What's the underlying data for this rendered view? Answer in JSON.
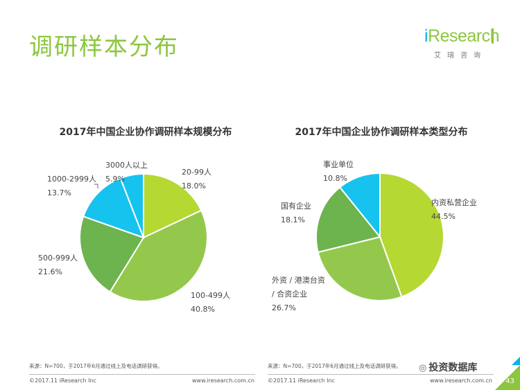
{
  "slide": {
    "title": "调研样本分布",
    "brand_logo_i": "i",
    "brand_logo_rest": "Research",
    "brand_sub": "艾瑞咨询",
    "page_number": "43",
    "watermark": "投资数据库"
  },
  "footer": {
    "source_left": "来源：N=700，于2017年6月通过线上及电话调研获得。",
    "source_right": "来源：N=700，于2017年6月通过线上及电话调研获得。",
    "copyright_left": "©2017.11 iResearch Inc",
    "copyright_right": "©2017.11 iResearch Inc",
    "website_left": "www.iresearch.com.cn",
    "website_right": "www.iresearch.com.cn"
  },
  "colors": {
    "light_green": "#b5d833",
    "mid_green": "#94c84d",
    "dark_green": "#6db34e",
    "cyan": "#16c3ee",
    "title_green": "#8cc63f"
  },
  "chart_data": [
    {
      "type": "pie",
      "title": "2017年中国企业协作调研样本规模分布",
      "categories": [
        "20-99人",
        "100-499人",
        "500-999人",
        "1000-2999人",
        "3000人以上"
      ],
      "values": [
        18.0,
        40.8,
        21.6,
        13.7,
        5.9
      ],
      "value_labels": [
        "18.0%",
        "40.8%",
        "21.6%",
        "13.7%",
        "5.9%"
      ],
      "slice_colors": [
        "#b5d833",
        "#94c84d",
        "#6db34e",
        "#16c3ee",
        "#16c3ee"
      ]
    },
    {
      "type": "pie",
      "title": "2017年中国企业协作调研样本类型分布",
      "categories": [
        "内资私营企业",
        "外资 / 港澳台资 / 合资企业",
        "国有企业",
        "事业单位"
      ],
      "category_lines": [
        [
          "内资私营企业"
        ],
        [
          "外资 / 港澳台资",
          "/ 合资企业"
        ],
        [
          "国有企业"
        ],
        [
          "事业单位"
        ]
      ],
      "values": [
        44.5,
        26.7,
        18.1,
        10.8
      ],
      "value_labels": [
        "44.5%",
        "26.7%",
        "18.1%",
        "10.8%"
      ],
      "slice_colors": [
        "#b5d833",
        "#94c84d",
        "#6db34e",
        "#16c3ee"
      ]
    }
  ]
}
